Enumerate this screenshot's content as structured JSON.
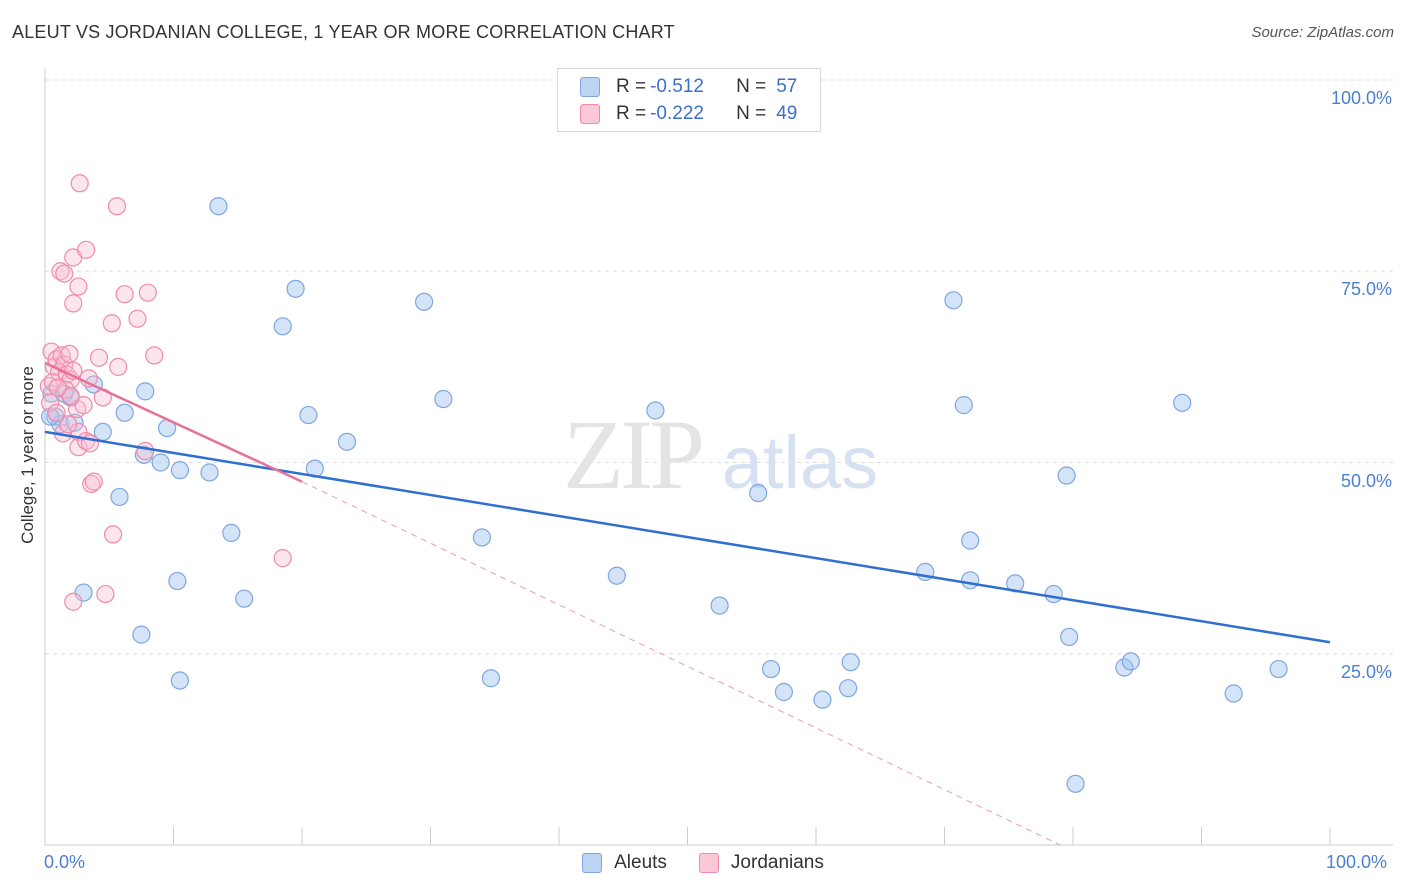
{
  "header": {
    "title": "ALEUT VS JORDANIAN COLLEGE, 1 YEAR OR MORE CORRELATION CHART",
    "source": "Source: ZipAtlas.com"
  },
  "watermark": {
    "zip": "ZIP",
    "atlas": "atlas"
  },
  "legend": {
    "rows": [
      {
        "r_label": "R =",
        "r_value": "-0.512",
        "n_label": "N =",
        "n_value": "57"
      },
      {
        "r_label": "R =",
        "r_value": "-0.222",
        "n_label": "N =",
        "n_value": "49"
      }
    ]
  },
  "chart_data": {
    "type": "scatter",
    "title": "ALEUT VS JORDANIAN COLLEGE, 1 YEAR OR MORE CORRELATION CHART",
    "xlabel": "",
    "ylabel": "College, 1 year or more",
    "xlim": [
      0,
      100
    ],
    "ylim": [
      0,
      100
    ],
    "x_tick_labels": [
      "0.0%",
      "100.0%"
    ],
    "y_tick_labels": [
      {
        "value": 100,
        "label": "100.0%"
      },
      {
        "value": 75,
        "label": "75.0%"
      },
      {
        "value": 50,
        "label": "50.0%"
      },
      {
        "value": 25,
        "label": "25.0%"
      }
    ],
    "grid": true,
    "legend_position": "top-center",
    "colors": {
      "Aleuts": "#6f9fe0",
      "Jordanians": "#f08aab",
      "aleut_line": "#2f6fd0",
      "jordan_line": "#e8719b"
    },
    "series": [
      {
        "name": "Aleuts",
        "r": -0.512,
        "n": 57,
        "trend": {
          "x": [
            0,
            100
          ],
          "y": [
            54.0,
            26.5
          ]
        },
        "points": [
          [
            0.5,
            59.0
          ],
          [
            0.8,
            56.0
          ],
          [
            1.2,
            55.0
          ],
          [
            1.5,
            59.0
          ],
          [
            2.0,
            58.5
          ],
          [
            2.3,
            55.2
          ],
          [
            3.8,
            60.2
          ],
          [
            4.5,
            54.0
          ],
          [
            5.8,
            45.5
          ],
          [
            6.2,
            56.5
          ],
          [
            7.7,
            51.0
          ],
          [
            3.0,
            33.0
          ],
          [
            7.5,
            27.5
          ],
          [
            7.8,
            59.3
          ],
          [
            9.0,
            50.0
          ],
          [
            9.5,
            54.5
          ],
          [
            10.5,
            49.0
          ],
          [
            10.3,
            34.5
          ],
          [
            10.5,
            21.5
          ],
          [
            13.5,
            83.5
          ],
          [
            12.8,
            48.7
          ],
          [
            14.5,
            40.8
          ],
          [
            15.5,
            32.2
          ],
          [
            18.5,
            67.8
          ],
          [
            19.5,
            72.7
          ],
          [
            20.5,
            56.2
          ],
          [
            21.0,
            49.2
          ],
          [
            23.5,
            52.7
          ],
          [
            29.5,
            71.0
          ],
          [
            31.0,
            58.3
          ],
          [
            34.0,
            40.2
          ],
          [
            34.7,
            21.8
          ],
          [
            44.5,
            35.2
          ],
          [
            47.5,
            56.8
          ],
          [
            52.5,
            31.3
          ],
          [
            55.5,
            46.0
          ],
          [
            56.5,
            23.0
          ],
          [
            57.5,
            20.0
          ],
          [
            60.5,
            19.0
          ],
          [
            62.5,
            20.5
          ],
          [
            62.7,
            23.9
          ],
          [
            68.5,
            35.7
          ],
          [
            70.7,
            71.2
          ],
          [
            71.5,
            57.5
          ],
          [
            72.0,
            39.8
          ],
          [
            72.0,
            34.6
          ],
          [
            75.5,
            34.2
          ],
          [
            78.5,
            32.8
          ],
          [
            79.5,
            48.3
          ],
          [
            79.7,
            27.2
          ],
          [
            80.2,
            8.0
          ],
          [
            84.0,
            23.2
          ],
          [
            84.5,
            24.0
          ],
          [
            88.5,
            57.8
          ],
          [
            92.5,
            19.8
          ],
          [
            96.0,
            23.0
          ],
          [
            0.4,
            56.0
          ]
        ]
      },
      {
        "name": "Jordanians",
        "r": -0.222,
        "n": 49,
        "trend": {
          "x": [
            0,
            20
          ],
          "y": [
            63.0,
            47.5
          ]
        },
        "trend_dashed": {
          "x": [
            20,
            79
          ],
          "y": [
            47.5,
            0
          ]
        },
        "points": [
          [
            0.3,
            60.0
          ],
          [
            0.5,
            64.5
          ],
          [
            0.7,
            62.5
          ],
          [
            0.9,
            63.5
          ],
          [
            1.1,
            61.8
          ],
          [
            1.3,
            64.0
          ],
          [
            1.5,
            62.8
          ],
          [
            1.7,
            61.5
          ],
          [
            1.9,
            64.2
          ],
          [
            2.0,
            60.8
          ],
          [
            2.2,
            62.0
          ],
          [
            0.4,
            57.8
          ],
          [
            0.9,
            56.5
          ],
          [
            1.6,
            59.5
          ],
          [
            1.2,
            75.0
          ],
          [
            1.5,
            74.7
          ],
          [
            2.2,
            76.8
          ],
          [
            2.2,
            70.8
          ],
          [
            2.6,
            73.0
          ],
          [
            2.7,
            86.5
          ],
          [
            3.2,
            77.8
          ],
          [
            2.5,
            57.0
          ],
          [
            2.6,
            54.0
          ],
          [
            2.6,
            52.0
          ],
          [
            3.0,
            57.5
          ],
          [
            3.2,
            52.8
          ],
          [
            3.5,
            52.5
          ],
          [
            3.6,
            47.2
          ],
          [
            3.8,
            47.5
          ],
          [
            4.2,
            63.7
          ],
          [
            4.5,
            58.5
          ],
          [
            4.7,
            32.8
          ],
          [
            5.2,
            68.2
          ],
          [
            5.3,
            40.6
          ],
          [
            5.7,
            62.5
          ],
          [
            5.6,
            83.5
          ],
          [
            6.2,
            72.0
          ],
          [
            7.2,
            68.8
          ],
          [
            7.8,
            51.5
          ],
          [
            8.0,
            72.2
          ],
          [
            8.5,
            64.0
          ],
          [
            2.2,
            31.8
          ],
          [
            18.5,
            37.5
          ],
          [
            1.4,
            53.8
          ],
          [
            2.0,
            58.7
          ],
          [
            0.6,
            60.5
          ],
          [
            1.0,
            59.8
          ],
          [
            3.4,
            61.0
          ],
          [
            1.8,
            55.0
          ]
        ]
      }
    ]
  },
  "bottom_legend": {
    "items": [
      "Aleuts",
      "Jordanians"
    ]
  }
}
